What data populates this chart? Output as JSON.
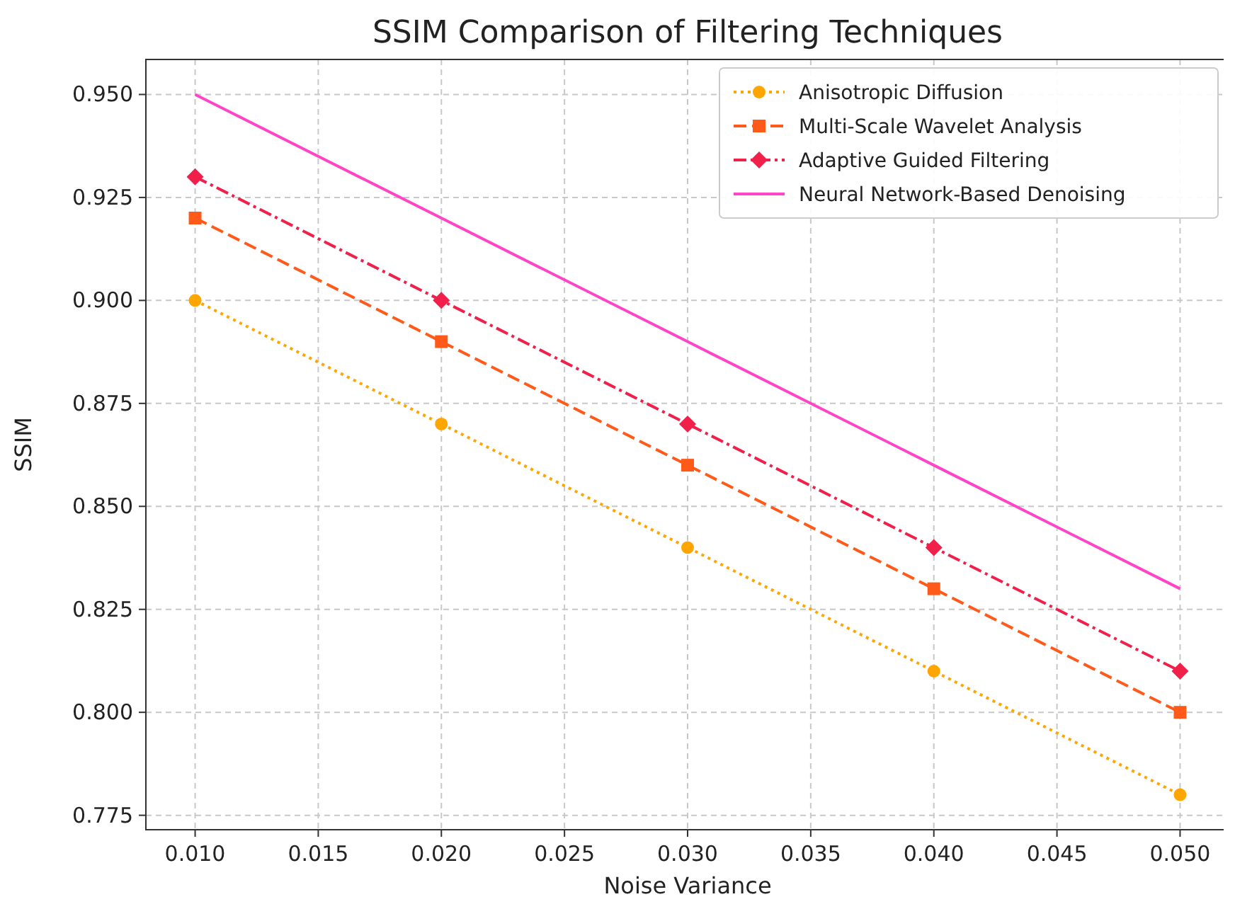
{
  "chart_data": {
    "type": "line",
    "title": "SSIM Comparison of Filtering Techniques",
    "xlabel": "Noise Variance",
    "ylabel": "SSIM",
    "x": [
      0.01,
      0.02,
      0.03,
      0.04,
      0.05
    ],
    "xlim": [
      0.008,
      0.052
    ],
    "xticks": [
      {
        "value": 0.01,
        "label": "0.010"
      },
      {
        "value": 0.015,
        "label": "0.015"
      },
      {
        "value": 0.02,
        "label": "0.020"
      },
      {
        "value": 0.025,
        "label": "0.025"
      },
      {
        "value": 0.03,
        "label": "0.030"
      },
      {
        "value": 0.035,
        "label": "0.035"
      },
      {
        "value": 0.04,
        "label": "0.040"
      },
      {
        "value": 0.045,
        "label": "0.045"
      },
      {
        "value": 0.05,
        "label": "0.050"
      }
    ],
    "ylim": [
      0.7715,
      0.9585
    ],
    "yticks": [
      {
        "value": 0.775,
        "label": "0.775"
      },
      {
        "value": 0.8,
        "label": "0.800"
      },
      {
        "value": 0.825,
        "label": "0.825"
      },
      {
        "value": 0.85,
        "label": "0.850"
      },
      {
        "value": 0.875,
        "label": "0.875"
      },
      {
        "value": 0.9,
        "label": "0.900"
      },
      {
        "value": 0.925,
        "label": "0.925"
      },
      {
        "value": 0.95,
        "label": "0.950"
      }
    ],
    "grid": true,
    "legend": "top right",
    "series": [
      {
        "name": "Anisotropic Diffusion",
        "color": "#ffa500",
        "marker": "circle",
        "line_style": "dotted",
        "values": [
          0.9,
          0.87,
          0.84,
          0.81,
          0.78
        ]
      },
      {
        "name": "Multi-Scale Wavelet Analysis",
        "color": "#ff5a1a",
        "marker": "square",
        "line_style": "dashed",
        "values": [
          0.92,
          0.89,
          0.86,
          0.83,
          0.8
        ]
      },
      {
        "name": "Adaptive Guided Filtering",
        "color": "#f0204a",
        "marker": "diamond",
        "line_style": "dashdot",
        "values": [
          0.93,
          0.9,
          0.87,
          0.84,
          0.81
        ]
      },
      {
        "name": "Neural Network-Based Denoising",
        "color": "#ff44c8",
        "marker": "none",
        "line_style": "solid",
        "values": [
          0.95,
          0.92,
          0.89,
          0.86,
          0.83
        ]
      }
    ]
  }
}
